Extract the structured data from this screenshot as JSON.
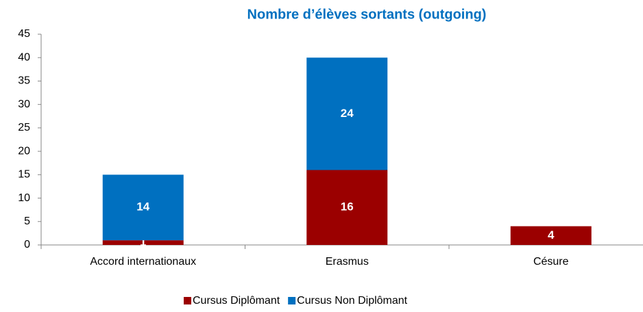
{
  "chart_data": {
    "type": "stacked_bar",
    "title": "Nombre d’élèves sortants (outgoing)",
    "categories": [
      "Accord internationaux",
      "Erasmus",
      "Césure"
    ],
    "series": [
      {
        "name": "Cursus Diplômant",
        "color": "#9b0000",
        "values": [
          1,
          16,
          4
        ]
      },
      {
        "name": "Cursus Non Diplômant",
        "color": "#0070c0",
        "values": [
          14,
          24,
          0
        ]
      }
    ],
    "ylim": [
      0,
      45
    ],
    "yticks": [
      0,
      5,
      10,
      15,
      20,
      25,
      30,
      35,
      40,
      45
    ],
    "grid": false,
    "legend": "bottom"
  }
}
